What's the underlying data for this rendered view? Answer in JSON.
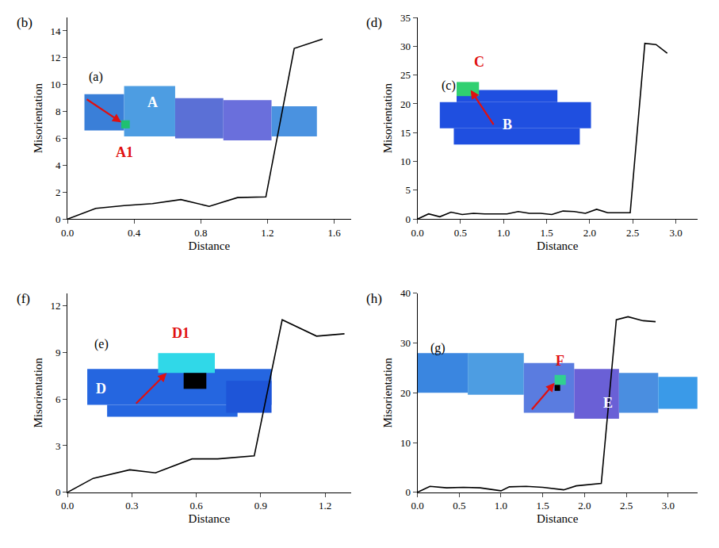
{
  "chart_data": [
    {
      "type": "line",
      "panel_label": "(b)",
      "inset_label": "(a)",
      "x": [
        0,
        0.17,
        0.34,
        0.51,
        0.68,
        0.85,
        1.02,
        1.19,
        1.36,
        1.53
      ],
      "values": [
        0,
        0.8,
        1.0,
        1.15,
        1.45,
        0.95,
        1.6,
        1.65,
        12.7,
        13.4
      ],
      "color": "#000000",
      "xlabel": "Distance",
      "ylabel": "Misorientation",
      "xlim": [
        0,
        1.7
      ],
      "xticks": [
        {
          "value": 0,
          "label": "0.0"
        },
        0.4,
        0.8,
        1.2,
        1.6
      ],
      "ylim": [
        0,
        15
      ],
      "yticks": [
        0,
        2,
        4,
        6,
        8,
        10,
        12,
        14
      ],
      "annotations": [
        {
          "text": "A",
          "color": "#ffffff"
        },
        {
          "text": "A1",
          "color": "#e01010"
        }
      ]
    },
    {
      "type": "line",
      "panel_label": "(d)",
      "inset_label": "(c)",
      "x": [
        0,
        0.13,
        0.26,
        0.39,
        0.52,
        0.65,
        0.78,
        0.91,
        1.04,
        1.17,
        1.3,
        1.43,
        1.56,
        1.69,
        1.82,
        1.95,
        2.08,
        2.21,
        2.34,
        2.47,
        2.64,
        2.77,
        2.9
      ],
      "values": [
        0,
        0.9,
        0.4,
        1.2,
        0.8,
        1.0,
        0.9,
        0.9,
        0.9,
        1.3,
        1.0,
        1.0,
        0.8,
        1.4,
        1.3,
        1.0,
        1.7,
        1.1,
        1.1,
        1.1,
        30.5,
        30.3,
        28.8
      ],
      "color": "#000000",
      "xlabel": "Distance",
      "ylabel": "Misorientation",
      "xlim": [
        0,
        3.25
      ],
      "xticks": [
        {
          "value": 0,
          "label": "0.0"
        },
        0.5,
        {
          "value": 1,
          "label": "1.0"
        },
        1.5,
        {
          "value": 2,
          "label": "2.0"
        },
        2.5,
        {
          "value": 3,
          "label": "3.0"
        }
      ],
      "ylim": [
        0,
        35
      ],
      "yticks": [
        0,
        5,
        10,
        15,
        20,
        25,
        30,
        35
      ],
      "annotations": [
        {
          "text": "B",
          "color": "#ffffff"
        },
        {
          "text": "C",
          "color": "#e01010"
        }
      ]
    },
    {
      "type": "line",
      "panel_label": "(f)",
      "inset_label": "(e)",
      "x": [
        0,
        0.12,
        0.29,
        0.41,
        0.58,
        0.7,
        0.87,
        1.0,
        1.16,
        1.29
      ],
      "values": [
        0,
        0.9,
        1.45,
        1.25,
        2.15,
        2.15,
        2.35,
        11.1,
        10.05,
        10.2
      ],
      "color": "#000000",
      "xlabel": "Distance",
      "ylabel": "Misorientation",
      "xlim": [
        0,
        1.32
      ],
      "xticks": [
        {
          "value": 0,
          "label": "0.0"
        },
        0.3,
        0.6,
        0.9,
        1.2
      ],
      "ylim": [
        0,
        12.8
      ],
      "yticks": [
        0,
        3,
        6,
        9,
        12
      ],
      "annotations": [
        {
          "text": "D",
          "color": "#ffffff"
        },
        {
          "text": "D1",
          "color": "#e01010"
        }
      ]
    },
    {
      "type": "line",
      "panel_label": "(h)",
      "inset_label": "(g)",
      "x": [
        0,
        0.15,
        0.35,
        0.55,
        0.75,
        1.0,
        1.1,
        1.3,
        1.5,
        1.75,
        1.9,
        2.2,
        2.38,
        2.52,
        2.7,
        2.85
      ],
      "values": [
        0,
        1.2,
        0.9,
        1.0,
        0.9,
        0.3,
        1.1,
        1.2,
        1.0,
        0.5,
        1.3,
        1.8,
        34.7,
        35.3,
        34.5,
        34.3
      ],
      "color": "#000000",
      "xlabel": "Distance",
      "ylabel": "Misorientation",
      "xlim": [
        0,
        3.35
      ],
      "xticks": [
        {
          "value": 0,
          "label": "0.0"
        },
        0.5,
        {
          "value": 1,
          "label": "1.0"
        },
        1.5,
        {
          "value": 2,
          "label": "2.0"
        },
        2.5,
        {
          "value": 3,
          "label": "3.0"
        }
      ],
      "ylim": [
        0,
        40
      ],
      "yticks": [
        0,
        10,
        20,
        30,
        40
      ],
      "annotations": [
        {
          "text": "E",
          "color": "#ffffff"
        },
        {
          "text": "F",
          "color": "#e01010"
        }
      ]
    }
  ]
}
